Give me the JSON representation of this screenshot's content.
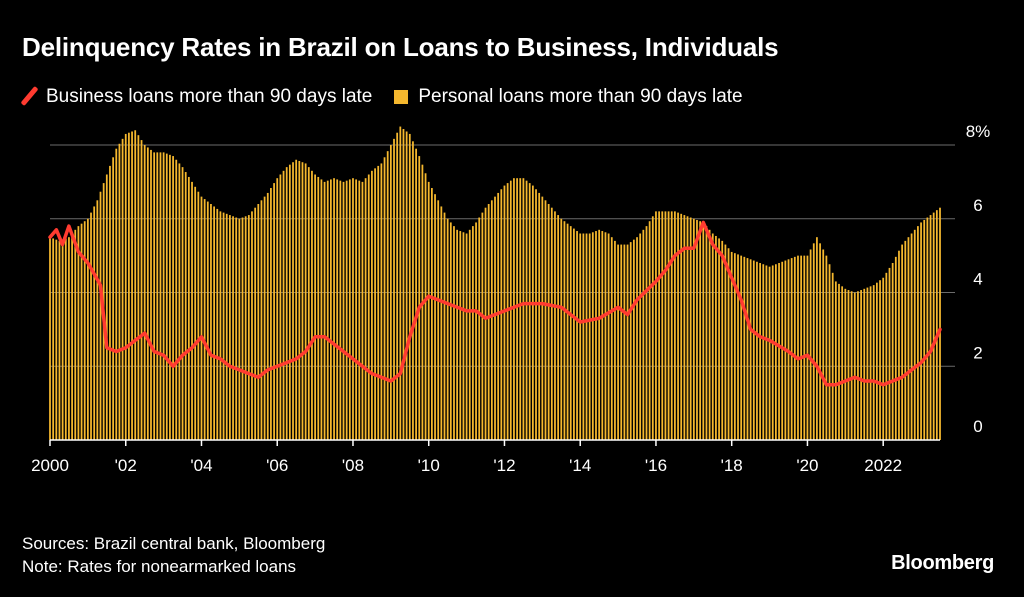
{
  "header": {
    "title": "Delinquency Rates in Brazil on Loans to Business, Individuals"
  },
  "colors": {
    "business": "#ff3b30",
    "personal": "#f5b82e",
    "grid": "#6b6b6b",
    "background": "#000000"
  },
  "footer": {
    "sources": "Sources: Brazil central bank, Bloomberg",
    "note": "Note: Rates for nonearmarked loans",
    "brand": "Bloomberg"
  },
  "chart_data": {
    "type": "bar",
    "title": "Delinquency Rates in Brazil on Loans to Business, Individuals",
    "xlabel": "",
    "ylabel": "",
    "ylim": [
      0,
      8
    ],
    "xlim": [
      2000,
      2023.5
    ],
    "grid": true,
    "legend_position": "top-left",
    "y_ticks": [
      {
        "value": 8,
        "label": "8%"
      },
      {
        "value": 6,
        "label": "6"
      },
      {
        "value": 4,
        "label": "4"
      },
      {
        "value": 2,
        "label": "2"
      },
      {
        "value": 0,
        "label": "0"
      }
    ],
    "x_ticks": [
      {
        "value": 2000,
        "label": "2000"
      },
      {
        "value": 2002,
        "label": "'02"
      },
      {
        "value": 2004,
        "label": "'04"
      },
      {
        "value": 2006,
        "label": "'06"
      },
      {
        "value": 2008,
        "label": "'08"
      },
      {
        "value": 2010,
        "label": "'10"
      },
      {
        "value": 2012,
        "label": "'12"
      },
      {
        "value": 2014,
        "label": "'14"
      },
      {
        "value": 2016,
        "label": "'16"
      },
      {
        "value": 2018,
        "label": "'18"
      },
      {
        "value": 2020,
        "label": "'20"
      },
      {
        "value": 2022,
        "label": "2022"
      }
    ],
    "series": [
      {
        "name": "Personal loans more than 90 days late",
        "type": "bar",
        "color": "#f5b82e",
        "x": [
          2000.0,
          2000.25,
          2000.5,
          2000.75,
          2001.0,
          2001.25,
          2001.5,
          2001.75,
          2002.0,
          2002.25,
          2002.5,
          2002.75,
          2003.0,
          2003.25,
          2003.5,
          2003.75,
          2004.0,
          2004.25,
          2004.5,
          2004.75,
          2005.0,
          2005.25,
          2005.5,
          2005.75,
          2006.0,
          2006.25,
          2006.5,
          2006.75,
          2007.0,
          2007.25,
          2007.5,
          2007.75,
          2008.0,
          2008.25,
          2008.5,
          2008.75,
          2009.0,
          2009.25,
          2009.5,
          2009.75,
          2010.0,
          2010.25,
          2010.5,
          2010.75,
          2011.0,
          2011.25,
          2011.5,
          2011.75,
          2012.0,
          2012.25,
          2012.5,
          2012.75,
          2013.0,
          2013.25,
          2013.5,
          2013.75,
          2014.0,
          2014.25,
          2014.5,
          2014.75,
          2015.0,
          2015.25,
          2015.5,
          2015.75,
          2016.0,
          2016.25,
          2016.5,
          2016.75,
          2017.0,
          2017.25,
          2017.5,
          2017.75,
          2018.0,
          2018.25,
          2018.5,
          2018.75,
          2019.0,
          2019.25,
          2019.5,
          2019.75,
          2020.0,
          2020.25,
          2020.5,
          2020.75,
          2021.0,
          2021.25,
          2021.5,
          2021.75,
          2022.0,
          2022.25,
          2022.5,
          2022.75,
          2023.0,
          2023.25,
          2023.5
        ],
        "values": [
          5.5,
          5.4,
          5.5,
          5.8,
          6.0,
          6.5,
          7.2,
          7.9,
          8.3,
          8.4,
          8.0,
          7.8,
          7.8,
          7.7,
          7.4,
          7.0,
          6.6,
          6.4,
          6.2,
          6.1,
          6.0,
          6.1,
          6.4,
          6.7,
          7.1,
          7.4,
          7.6,
          7.5,
          7.2,
          7.0,
          7.1,
          7.0,
          7.1,
          7.0,
          7.3,
          7.5,
          8.0,
          8.5,
          8.3,
          7.7,
          7.0,
          6.5,
          6.0,
          5.7,
          5.6,
          5.9,
          6.3,
          6.6,
          6.9,
          7.1,
          7.1,
          6.9,
          6.6,
          6.3,
          6.0,
          5.8,
          5.6,
          5.6,
          5.7,
          5.6,
          5.3,
          5.3,
          5.5,
          5.8,
          6.2,
          6.2,
          6.2,
          6.1,
          6.0,
          5.9,
          5.6,
          5.4,
          5.1,
          5.0,
          4.9,
          4.8,
          4.7,
          4.8,
          4.9,
          5.0,
          5.0,
          5.5,
          5.0,
          4.3,
          4.1,
          4.0,
          4.1,
          4.2,
          4.4,
          4.8,
          5.3,
          5.6,
          5.9,
          6.1,
          6.3
        ]
      },
      {
        "name": "Business loans more than 90 days late",
        "type": "line",
        "color": "#ff3b30",
        "x": [
          2000.0,
          2000.17,
          2000.33,
          2000.5,
          2000.75,
          2001.0,
          2001.17,
          2001.33,
          2001.5,
          2001.75,
          2002.0,
          2002.25,
          2002.5,
          2002.75,
          2003.0,
          2003.25,
          2003.5,
          2003.75,
          2004.0,
          2004.25,
          2004.5,
          2004.75,
          2005.0,
          2005.25,
          2005.5,
          2005.75,
          2006.0,
          2006.25,
          2006.5,
          2006.75,
          2007.0,
          2007.25,
          2007.5,
          2007.75,
          2008.0,
          2008.25,
          2008.5,
          2008.75,
          2009.0,
          2009.25,
          2009.5,
          2009.75,
          2010.0,
          2010.5,
          2011.0,
          2011.25,
          2011.5,
          2012.0,
          2012.5,
          2013.0,
          2013.5,
          2014.0,
          2014.5,
          2015.0,
          2015.25,
          2015.5,
          2016.0,
          2016.25,
          2016.5,
          2016.75,
          2017.0,
          2017.25,
          2017.5,
          2017.75,
          2018.0,
          2018.25,
          2018.5,
          2018.75,
          2019.0,
          2019.5,
          2019.75,
          2020.0,
          2020.25,
          2020.5,
          2020.75,
          2021.0,
          2021.25,
          2021.5,
          2021.75,
          2022.0,
          2022.25,
          2022.5,
          2022.75,
          2023.0,
          2023.25,
          2023.5
        ],
        "values": [
          5.5,
          5.7,
          5.3,
          5.8,
          5.1,
          4.8,
          4.5,
          4.2,
          2.5,
          2.4,
          2.5,
          2.7,
          2.9,
          2.4,
          2.3,
          2.0,
          2.3,
          2.5,
          2.8,
          2.3,
          2.2,
          2.0,
          1.9,
          1.8,
          1.7,
          1.9,
          2.0,
          2.1,
          2.2,
          2.4,
          2.8,
          2.8,
          2.6,
          2.4,
          2.2,
          2.0,
          1.8,
          1.7,
          1.6,
          1.8,
          2.8,
          3.6,
          3.9,
          3.7,
          3.5,
          3.5,
          3.3,
          3.5,
          3.7,
          3.7,
          3.6,
          3.2,
          3.3,
          3.6,
          3.4,
          3.8,
          4.3,
          4.6,
          5.0,
          5.2,
          5.2,
          5.9,
          5.3,
          5.0,
          4.4,
          3.8,
          3.0,
          2.8,
          2.7,
          2.4,
          2.2,
          2.3,
          2.0,
          1.5,
          1.5,
          1.6,
          1.7,
          1.6,
          1.6,
          1.5,
          1.6,
          1.7,
          1.9,
          2.1,
          2.4,
          3.0
        ]
      }
    ]
  }
}
